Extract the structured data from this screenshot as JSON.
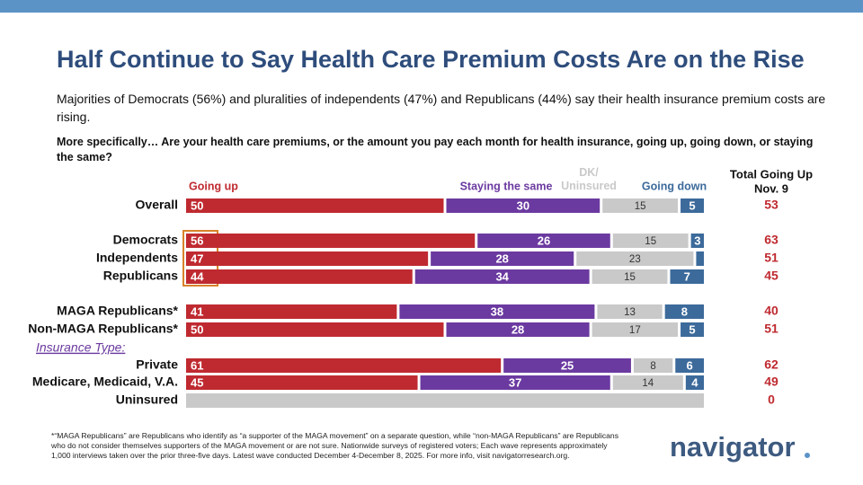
{
  "header": {
    "title": "Half Continue to Say Health Care Premium Costs Are on the Rise",
    "subtitle": "Majorities of Democrats (56%) and pluralities of independents (47%) and Republicans (44%) say their health insurance premium costs are rising.",
    "question": "More specifically… Are your health care premiums, or the amount you pay each month for health insurance, going up, going down, or staying the same?"
  },
  "chart_data": {
    "type": "stacked-bar",
    "orientation": "horizontal",
    "categories": [
      "Overall",
      "Democrats",
      "Independents",
      "Republicans",
      "MAGA Republicans*",
      "Non-MAGA Republicans*",
      "Private",
      "Medicare, Medicaid, V.A.",
      "Uninsured"
    ],
    "group_label": "Insurance Type:",
    "xlim": [
      0,
      100
    ],
    "series": [
      {
        "name": "Going up",
        "color": "#bf2a30",
        "label_color": "#ffffff",
        "values": [
          50,
          56,
          47,
          44,
          41,
          50,
          61,
          45,
          null
        ]
      },
      {
        "name": "Staying the same",
        "color": "#6b3aa0",
        "label_color": "#ffffff",
        "values": [
          30,
          26,
          28,
          34,
          38,
          28,
          25,
          37,
          null
        ]
      },
      {
        "name": "DK/ Uninsured",
        "color": "#c9c9c9",
        "label_color": "#333333",
        "values": [
          15,
          15,
          23,
          15,
          13,
          17,
          8,
          14,
          100
        ],
        "value_labels": [
          "15",
          "15",
          "23",
          "15",
          "13",
          "17",
          "8",
          "14",
          null
        ]
      },
      {
        "name": "Going down",
        "color": "#3c6a9b",
        "label_color": "#ffffff",
        "values": [
          5,
          3,
          2,
          7,
          8,
          5,
          6,
          4,
          null
        ],
        "value_labels": [
          "5",
          "3",
          null,
          "7",
          "8",
          "5",
          "6",
          "4",
          null
        ]
      }
    ],
    "totals": {
      "title": "Total Going Up",
      "subtitle": "Nov. 9",
      "color": "#bf2a30",
      "values": [
        53,
        63,
        51,
        45,
        40,
        51,
        62,
        49,
        0
      ]
    }
  },
  "footnote": "*“MAGA Republicans” are Republicans who identify as “a supporter of the MAGA movement” on a separate question, while “non-MAGA Republicans” are Republicans who do not consider themselves supporters of the MAGA movement or are not sure. Nationwide surveys of registered voters; Each wave represents approximately 1,000 interviews taken over the prior three-five days. Latest wave conducted December 4-December 8, 2025. For more info, visit navigatorresearch.org.",
  "logo": "navigator"
}
